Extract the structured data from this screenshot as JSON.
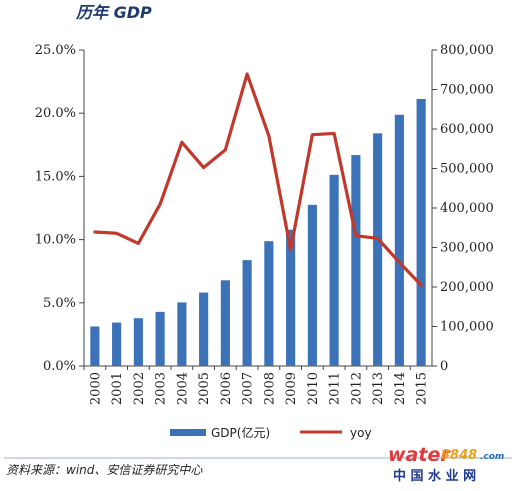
{
  "header": {
    "title": "历年 GDP"
  },
  "chart_data": {
    "type": "bar+line",
    "categories": [
      "2000",
      "2001",
      "2002",
      "2003",
      "2004",
      "2005",
      "2006",
      "2007",
      "2008",
      "2009",
      "2010",
      "2011",
      "2012",
      "2013",
      "2014",
      "2015"
    ],
    "series": [
      {
        "name": "GDP(亿元)",
        "type": "bar",
        "axis": "right",
        "color": "#3b72b8",
        "values": [
          100000,
          110000,
          121000,
          137000,
          161000,
          186000,
          217000,
          268000,
          316000,
          345000,
          408000,
          484000,
          534000,
          589000,
          636000,
          676000
        ]
      },
      {
        "name": "yoy",
        "type": "line",
        "axis": "left",
        "color": "#c0392b",
        "values": [
          10.6,
          10.5,
          9.7,
          12.8,
          17.7,
          15.7,
          17.1,
          23.1,
          18.2,
          9.2,
          18.3,
          18.4,
          10.3,
          10.1,
          8.2,
          6.4
        ]
      }
    ],
    "y_left": {
      "min": 0,
      "max": 25,
      "ticks": [
        "0.0%",
        "5.0%",
        "10.0%",
        "15.0%",
        "20.0%",
        "25.0%"
      ],
      "tick_values": [
        0,
        5,
        10,
        15,
        20,
        25
      ]
    },
    "y_right": {
      "min": 0,
      "max": 800000,
      "ticks": [
        "0",
        "100,000",
        "200,000",
        "300,000",
        "400,000",
        "500,000",
        "600,000",
        "700,000",
        "800,000"
      ],
      "tick_values": [
        0,
        100000,
        200000,
        300000,
        400000,
        500000,
        600000,
        700000,
        800000
      ]
    },
    "grid": false,
    "legend_position": "bottom"
  },
  "footer": {
    "source": "资料来源：wind、安信证券研究中心",
    "logo_main": "water",
    "logo_num": "8848",
    "logo_suffix": ".com",
    "logo_sub": "中 国 水 业 网"
  }
}
